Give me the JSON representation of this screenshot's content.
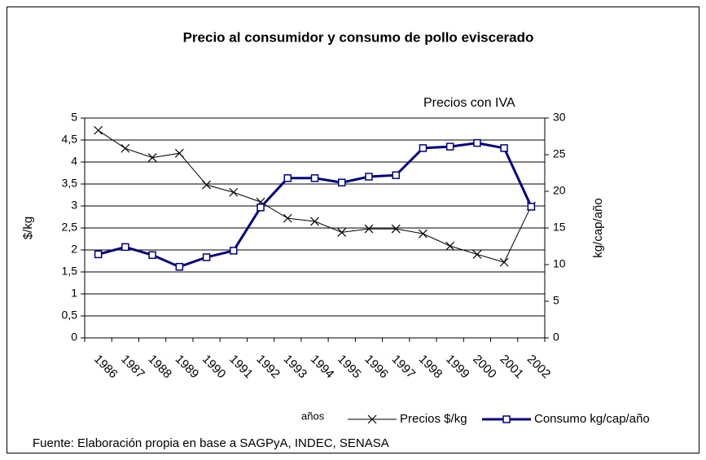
{
  "chart_data": {
    "type": "line",
    "title": "Precio al consumidor y consumo de pollo eviscerado",
    "annotation": "Precios con IVA",
    "ylabel": "$/kg",
    "y2label": "kg/cap/año",
    "xlabel": "años",
    "source": "Fuente: Elaboración propia en base a SAGPyA, INDEC, SENASA",
    "categories": [
      "1986",
      "1987",
      "1988",
      "1989",
      "1990",
      "1991",
      "1992",
      "1993",
      "1994",
      "1995",
      "1996",
      "1997",
      "1998",
      "1999",
      "2000",
      "2001",
      "2002"
    ],
    "series": [
      {
        "name": "Precios $/kg",
        "color": "#000000",
        "axis": "y",
        "values": [
          4.72,
          4.31,
          4.1,
          4.2,
          3.48,
          3.31,
          3.09,
          2.72,
          2.65,
          2.4,
          2.48,
          2.48,
          2.37,
          2.09,
          1.9,
          1.72,
          3.0
        ]
      },
      {
        "name": "Consumo kg/cap/año",
        "color": "#000080",
        "axis": "y2",
        "values": [
          11.4,
          12.4,
          11.3,
          9.7,
          11.0,
          11.9,
          17.8,
          21.8,
          21.8,
          21.2,
          22.0,
          22.2,
          25.9,
          26.1,
          26.6,
          25.9,
          17.9
        ]
      }
    ],
    "ylim": [
      0,
      5
    ],
    "yticks": [
      0,
      {
        "value": 0.5,
        "label": "0,5"
      },
      1,
      {
        "value": 1.5,
        "label": "1,5"
      },
      2,
      {
        "value": 2.5,
        "label": "2,5"
      },
      3,
      {
        "value": 3.5,
        "label": "3,5"
      },
      4,
      {
        "value": 4.5,
        "label": "4,5"
      },
      5
    ],
    "y2lim": [
      0,
      30
    ],
    "y2ticks": [
      0,
      5,
      10,
      15,
      20,
      25,
      30
    ],
    "grid": true
  }
}
